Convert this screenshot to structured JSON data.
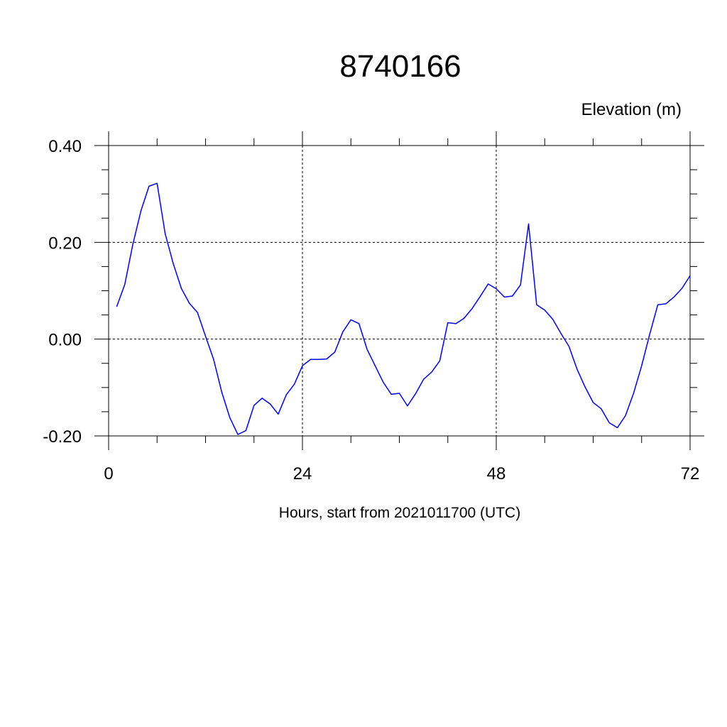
{
  "chart_data": {
    "type": "line",
    "title": "8740166",
    "ylabel": "Elevation (m)",
    "xlabel": "Hours, start from 2021011700 (UTC)",
    "xlim": [
      0,
      72
    ],
    "ylim": [
      -0.2,
      0.4
    ],
    "xticks": [
      0,
      24,
      48,
      72
    ],
    "xtick_labels": [
      "0",
      "24",
      "48",
      "72"
    ],
    "yticks": [
      -0.2,
      0.0,
      0.2,
      0.4
    ],
    "ytick_labels": [
      "-0.20",
      "0.00",
      "0.20",
      "0.40"
    ],
    "grid": true,
    "colors": {
      "line": "#0000ff",
      "grid": "#000000",
      "axis": "#000000"
    },
    "series": [
      {
        "x": [
          1,
          2,
          3,
          4,
          5,
          6,
          7,
          8,
          9,
          10,
          11,
          12,
          13,
          14,
          15,
          16,
          17,
          18,
          19,
          20,
          21,
          22,
          23,
          24,
          25,
          26,
          27,
          28,
          29,
          30,
          31,
          32,
          33,
          34,
          35,
          36,
          37,
          38,
          39,
          40,
          41,
          42,
          43,
          44,
          45,
          46,
          47,
          48,
          49,
          50,
          51,
          52,
          53,
          54,
          55,
          56,
          57,
          58,
          59,
          60,
          61,
          62,
          63,
          64,
          65,
          66,
          67,
          68,
          69,
          70,
          71,
          72
        ],
        "values": [
          0.067,
          0.113,
          0.196,
          0.265,
          0.316,
          0.322,
          0.218,
          0.156,
          0.105,
          0.074,
          0.055,
          0.006,
          -0.042,
          -0.109,
          -0.162,
          -0.197,
          -0.189,
          -0.137,
          -0.122,
          -0.134,
          -0.155,
          -0.115,
          -0.093,
          -0.055,
          -0.042,
          -0.042,
          -0.041,
          -0.027,
          0.015,
          0.04,
          0.032,
          -0.021,
          -0.055,
          -0.089,
          -0.114,
          -0.112,
          -0.138,
          -0.113,
          -0.083,
          -0.068,
          -0.045,
          0.034,
          0.032,
          0.043,
          0.063,
          0.088,
          0.114,
          0.104,
          0.087,
          0.089,
          0.112,
          0.238,
          0.071,
          0.06,
          0.041,
          0.012,
          -0.015,
          -0.062,
          -0.099,
          -0.131,
          -0.144,
          -0.173,
          -0.183,
          -0.158,
          -0.112,
          -0.055,
          0.01,
          0.071,
          0.073,
          0.087,
          0.105,
          0.131
        ]
      }
    ]
  }
}
